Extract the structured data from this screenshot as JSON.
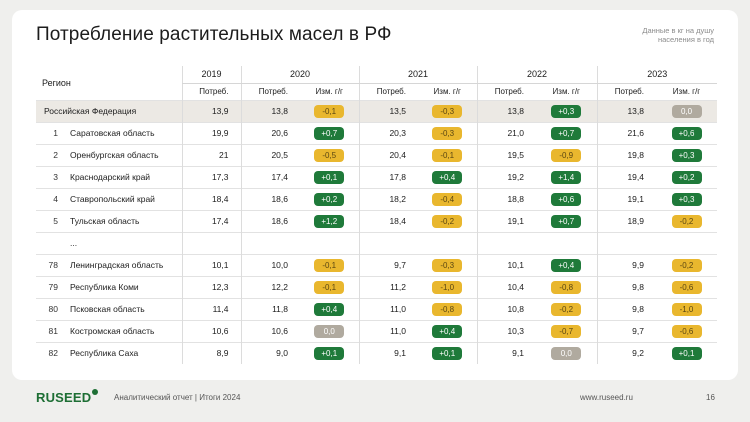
{
  "title": "Потребление растительных масел в РФ",
  "note": "Данные в кг на душу населения в год",
  "table": {
    "region_header": "Регион",
    "years": [
      "2019",
      "2020",
      "2021",
      "2022",
      "2023"
    ],
    "consumption_label": "Потреб.",
    "change_label": "Изм. г/г",
    "rows": [
      {
        "type": "fed",
        "num": "",
        "name": "Российская Федерация",
        "v2019": "13,9",
        "v2020": "13,8",
        "c2020": "-0,1",
        "k2020": "yellow",
        "v2021": "13,5",
        "c2021": "-0,3",
        "k2021": "yellow",
        "v2022": "13,8",
        "c2022": "+0,3",
        "k2022": "green",
        "v2023": "13,8",
        "c2023": "0,0",
        "k2023": "grey"
      },
      {
        "type": "row",
        "num": "1",
        "name": "Саратовская область",
        "v2019": "19,9",
        "v2020": "20,6",
        "c2020": "+0,7",
        "k2020": "green",
        "v2021": "20,3",
        "c2021": "-0,3",
        "k2021": "yellow",
        "v2022": "21,0",
        "c2022": "+0,7",
        "k2022": "green",
        "v2023": "21,6",
        "c2023": "+0,6",
        "k2023": "green"
      },
      {
        "type": "row",
        "num": "2",
        "name": "Оренбургская область",
        "v2019": "21",
        "v2020": "20,5",
        "c2020": "-0,5",
        "k2020": "yellow",
        "v2021": "20,4",
        "c2021": "-0,1",
        "k2021": "yellow",
        "v2022": "19,5",
        "c2022": "-0,9",
        "k2022": "yellow",
        "v2023": "19,8",
        "c2023": "+0,3",
        "k2023": "green"
      },
      {
        "type": "row",
        "num": "3",
        "name": "Краснодарский край",
        "v2019": "17,3",
        "v2020": "17,4",
        "c2020": "+0,1",
        "k2020": "green",
        "v2021": "17,8",
        "c2021": "+0,4",
        "k2021": "green",
        "v2022": "19,2",
        "c2022": "+1,4",
        "k2022": "green",
        "v2023": "19,4",
        "c2023": "+0,2",
        "k2023": "green"
      },
      {
        "type": "row",
        "num": "4",
        "name": "Ставропольский край",
        "v2019": "18,4",
        "v2020": "18,6",
        "c2020": "+0,2",
        "k2020": "green",
        "v2021": "18,2",
        "c2021": "-0,4",
        "k2021": "yellow",
        "v2022": "18,8",
        "c2022": "+0,6",
        "k2022": "green",
        "v2023": "19,1",
        "c2023": "+0,3",
        "k2023": "green"
      },
      {
        "type": "row",
        "num": "5",
        "name": "Тульская область",
        "v2019": "17,4",
        "v2020": "18,6",
        "c2020": "+1,2",
        "k2020": "green",
        "v2021": "18,4",
        "c2021": "-0,2",
        "k2021": "yellow",
        "v2022": "19,1",
        "c2022": "+0,7",
        "k2022": "green",
        "v2023": "18,9",
        "c2023": "-0,2",
        "k2023": "yellow"
      },
      {
        "type": "ellipsis",
        "num": "",
        "name": "...",
        "v2019": "",
        "v2020": "",
        "c2020": "",
        "k2020": "",
        "v2021": "",
        "c2021": "",
        "k2021": "",
        "v2022": "",
        "c2022": "",
        "k2022": "",
        "v2023": "",
        "c2023": "",
        "k2023": ""
      },
      {
        "type": "row",
        "num": "78",
        "name": "Ленинградская область",
        "v2019": "10,1",
        "v2020": "10,0",
        "c2020": "-0,1",
        "k2020": "yellow",
        "v2021": "9,7",
        "c2021": "-0,3",
        "k2021": "yellow",
        "v2022": "10,1",
        "c2022": "+0,4",
        "k2022": "green",
        "v2023": "9,9",
        "c2023": "-0,2",
        "k2023": "yellow"
      },
      {
        "type": "row",
        "num": "79",
        "name": "Республика Коми",
        "v2019": "12,3",
        "v2020": "12,2",
        "c2020": "-0,1",
        "k2020": "yellow",
        "v2021": "11,2",
        "c2021": "-1,0",
        "k2021": "yellow",
        "v2022": "10,4",
        "c2022": "-0,8",
        "k2022": "yellow",
        "v2023": "9,8",
        "c2023": "-0,6",
        "k2023": "yellow"
      },
      {
        "type": "row",
        "num": "80",
        "name": "Псковская область",
        "v2019": "11,4",
        "v2020": "11,8",
        "c2020": "+0,4",
        "k2020": "green",
        "v2021": "11,0",
        "c2021": "-0,8",
        "k2021": "yellow",
        "v2022": "10,8",
        "c2022": "-0,2",
        "k2022": "yellow",
        "v2023": "9,8",
        "c2023": "-1,0",
        "k2023": "yellow"
      },
      {
        "type": "row",
        "num": "81",
        "name": "Костромская область",
        "v2019": "10,6",
        "v2020": "10,6",
        "c2020": "0,0",
        "k2020": "grey",
        "v2021": "11,0",
        "c2021": "+0,4",
        "k2021": "green",
        "v2022": "10,3",
        "c2022": "-0,7",
        "k2022": "yellow",
        "v2023": "9,7",
        "c2023": "-0,6",
        "k2023": "yellow"
      },
      {
        "type": "row",
        "num": "82",
        "name": "Республика Саха",
        "v2019": "8,9",
        "v2020": "9,0",
        "c2020": "+0,1",
        "k2020": "green",
        "v2021": "9,1",
        "c2021": "+0,1",
        "k2021": "green",
        "v2022": "9,1",
        "c2022": "0,0",
        "k2022": "grey",
        "v2023": "9,2",
        "c2023": "+0,1",
        "k2023": "green"
      }
    ]
  },
  "colors": {
    "green": "#1f7a3a",
    "yellow": "#e9b72e",
    "grey": "#b0aa9f",
    "brand": "#1d6e34"
  },
  "footer": {
    "logo": "RUSEED",
    "report": "Аналитический отчет  |  Итоги 2024",
    "site": "www.ruseed.ru",
    "page": "16"
  }
}
